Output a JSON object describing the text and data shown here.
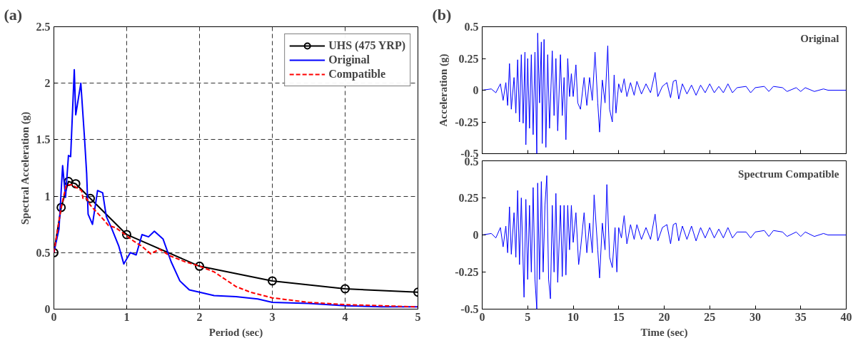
{
  "chart_data": [
    {
      "type": "line",
      "title": "(a)",
      "xlabel": "Period (sec)",
      "ylabel": "Spectral Acceleration (g)",
      "xlim": [
        0,
        5
      ],
      "ylim": [
        0,
        2.5
      ],
      "xticks": [
        0,
        1,
        2,
        3,
        4,
        5
      ],
      "yticks": [
        0,
        0.5,
        1,
        1.5,
        2,
        2.5
      ],
      "grid": true,
      "legend": "top right",
      "line_style": "solid",
      "marker": "none",
      "series": [
        {
          "name": "UHS (475 YRP)",
          "color": "#000000",
          "marker": "circle",
          "x": [
            0,
            0.1,
            0.2,
            0.3,
            0.5,
            1,
            2,
            3,
            4,
            5
          ],
          "values": [
            0.5,
            0.9,
            1.13,
            1.11,
            0.98,
            0.66,
            0.38,
            0.25,
            0.18,
            0.15
          ]
        },
        {
          "name": "Original",
          "color": "#0000ff",
          "x": [
            0,
            0.07,
            0.12,
            0.16,
            0.2,
            0.23,
            0.28,
            0.3,
            0.37,
            0.42,
            0.45,
            0.47,
            0.53,
            0.6,
            0.67,
            0.72,
            0.79,
            0.89,
            0.96,
            1.05,
            1.13,
            1.21,
            1.3,
            1.38,
            1.5,
            1.61,
            1.73,
            1.86,
            2,
            2.2,
            2.5,
            2.8,
            3,
            3.5,
            4,
            4.5,
            5
          ],
          "values": [
            0.5,
            0.71,
            1.27,
            0.99,
            1.36,
            1.35,
            2.12,
            1.72,
            2.0,
            1.52,
            1.2,
            0.84,
            0.75,
            1.05,
            1.03,
            0.82,
            0.72,
            0.56,
            0.4,
            0.5,
            0.48,
            0.66,
            0.64,
            0.69,
            0.62,
            0.42,
            0.25,
            0.17,
            0.15,
            0.12,
            0.11,
            0.09,
            0.06,
            0.05,
            0.03,
            0.02,
            0.02
          ]
        },
        {
          "name": "Compatible",
          "color": "#ff0000",
          "line_style": "dashed",
          "x": [
            0,
            0.1,
            0.17,
            0.25,
            0.3,
            0.38,
            0.4,
            0.45,
            0.5,
            0.6,
            0.7,
            0.75,
            0.85,
            1,
            1.1,
            1.2,
            1.33,
            1.45,
            1.6,
            1.8,
            1.9,
            2,
            2.2,
            2.5,
            2.7,
            3,
            3.5,
            4,
            5
          ],
          "values": [
            0.5,
            0.9,
            1.1,
            1.1,
            1.08,
            1.05,
            0.98,
            0.98,
            0.92,
            0.85,
            0.78,
            0.74,
            0.72,
            0.65,
            0.6,
            0.56,
            0.49,
            0.53,
            0.47,
            0.42,
            0.4,
            0.38,
            0.33,
            0.2,
            0.15,
            0.1,
            0.06,
            0.04,
            0.02
          ]
        }
      ]
    },
    {
      "type": "line",
      "title": "(b)",
      "ylabel": "Acceleration (g)",
      "xlim": [
        0,
        40
      ],
      "ylim": [
        -0.5,
        0.5
      ],
      "xticks": [
        0,
        5,
        10,
        15,
        20,
        25,
        30,
        35,
        40
      ],
      "yticks": [
        -0.5,
        -0.25,
        0,
        0.25,
        0.5
      ],
      "tick_labels": "y",
      "annotations": [
        "Original"
      ],
      "series": [
        {
          "color": "#0000ff",
          "x": [
            0,
            1,
            1.5,
            2,
            2.3,
            2.6,
            2.8,
            3.0,
            3.2,
            3.5,
            3.7,
            3.9,
            4.1,
            4.3,
            4.5,
            4.7,
            4.8,
            5.0,
            5.2,
            5.4,
            5.6,
            5.8,
            6.0,
            6.1,
            6.3,
            6.5,
            6.6,
            6.8,
            7.0,
            7.2,
            7.4,
            7.7,
            7.9,
            8.1,
            8.3,
            8.6,
            8.8,
            9.0,
            9.2,
            9.4,
            9.6,
            9.8,
            10.0,
            10.3,
            10.5,
            10.8,
            11.2,
            11.5,
            11.8,
            12.1,
            12.4,
            12.7,
            12.9,
            13.2,
            13.5,
            13.8,
            14.0,
            14.3,
            14.5,
            14.7,
            15,
            15.3,
            15.6,
            15.9,
            16.3,
            16.7,
            17,
            17.5,
            18,
            18.5,
            19,
            19.3,
            19.8,
            20.3,
            20.7,
            21,
            21.3,
            21.6,
            22,
            22.5,
            23,
            23.5,
            24,
            24.5,
            25,
            25.5,
            26,
            26.5,
            27,
            27.5,
            28,
            29,
            29.5,
            30,
            31,
            31.5,
            32,
            33,
            33.5,
            34.5,
            35,
            35.5,
            36.5,
            37.5,
            38,
            40
          ],
          "values": [
            0,
            0.01,
            -0.02,
            0.05,
            -0.08,
            0.06,
            -0.12,
            0.21,
            -0.15,
            0.1,
            -0.18,
            0.24,
            -0.25,
            0.28,
            -0.26,
            0.3,
            -0.43,
            0.25,
            -0.3,
            0.28,
            -0.35,
            0.3,
            -0.5,
            0.45,
            -0.1,
            0.38,
            -0.42,
            0.4,
            -0.45,
            0.28,
            -0.3,
            0.31,
            -0.2,
            0.25,
            -0.32,
            0.28,
            -0.2,
            0.1,
            -0.39,
            0.25,
            -0.05,
            0.13,
            -0.05,
            0.2,
            -0.1,
            -0.15,
            0.1,
            -0.12,
            0.1,
            -0.08,
            0.3,
            -0.1,
            -0.33,
            0.08,
            -0.1,
            0.35,
            -0.15,
            -0.25,
            0.12,
            -0.18,
            0.05,
            -0.02,
            0.09,
            -0.05,
            0.06,
            -0.04,
            0.07,
            -0.03,
            0.05,
            -0.02,
            0.14,
            -0.05,
            0.03,
            0.06,
            -0.06,
            0.07,
            0.08,
            -0.07,
            0.05,
            -0.03,
            0.04,
            -0.04,
            0.04,
            -0.02,
            0.05,
            -0.02,
            0.03,
            -0.02,
            0.05,
            -0.02,
            0.02,
            0.03,
            -0.02,
            0.02,
            0.03,
            -0.01,
            0.03,
            0.02,
            -0.01,
            0.02,
            -0.01,
            0.02,
            -0.01,
            0.01,
            0,
            0
          ]
        }
      ]
    },
    {
      "type": "line",
      "xlabel": "Time (sec)",
      "xlim": [
        0,
        40
      ],
      "ylim": [
        -0.5,
        0.5
      ],
      "xticks": [
        0,
        5,
        10,
        15,
        20,
        25,
        30,
        35,
        40
      ],
      "yticks": [
        -0.5,
        -0.25,
        0,
        0.25,
        0.5
      ],
      "annotations": [
        "Spectrum Compatible"
      ],
      "series": [
        {
          "color": "#0000ff",
          "x": [
            0,
            1,
            1.5,
            2,
            2.3,
            2.6,
            2.8,
            3.0,
            3.2,
            3.5,
            3.7,
            3.9,
            4.1,
            4.3,
            4.6,
            4.8,
            5.0,
            5.2,
            5.4,
            5.6,
            5.8,
            6.0,
            6.1,
            6.3,
            6.5,
            6.7,
            6.9,
            7.1,
            7.3,
            7.5,
            7.7,
            7.9,
            8.1,
            8.3,
            8.6,
            8.8,
            9.0,
            9.2,
            9.4,
            9.6,
            9.8,
            10.0,
            10.3,
            10.6,
            10.8,
            11.2,
            11.5,
            11.8,
            12.1,
            12.3,
            12.7,
            12.9,
            13.2,
            13.5,
            13.7,
            14.0,
            14.3,
            14.6,
            14.8,
            15,
            15.3,
            15.6,
            15.9,
            16.3,
            16.7,
            17,
            17.5,
            18,
            18.5,
            19,
            19.3,
            19.8,
            20.3,
            20.7,
            21,
            21.3,
            21.6,
            22,
            22.5,
            23,
            23.5,
            24,
            24.5,
            25,
            25.5,
            26,
            26.5,
            27,
            27.5,
            28,
            29,
            29.5,
            30,
            31,
            31.5,
            32,
            33,
            33.5,
            34.5,
            35,
            35.5,
            36.5,
            37.5,
            38,
            40
          ],
          "values": [
            0,
            0.01,
            -0.02,
            0.05,
            -0.08,
            0.06,
            -0.12,
            0.19,
            -0.13,
            0.15,
            -0.15,
            0.3,
            -0.2,
            0.25,
            -0.42,
            0.24,
            -0.3,
            0.2,
            -0.25,
            0.32,
            -0.3,
            -0.5,
            0.35,
            -0.3,
            0.36,
            -0.25,
            0.2,
            0.4,
            -0.3,
            -0.43,
            0.2,
            -0.25,
            0.28,
            -0.32,
            0.2,
            -0.28,
            0.2,
            -0.27,
            0.2,
            -0.1,
            0.2,
            -0.05,
            0.15,
            -0.2,
            -0.1,
            0.15,
            -0.12,
            0.08,
            -0.12,
            0.27,
            -0.1,
            -0.29,
            0.08,
            -0.1,
            0.34,
            -0.15,
            -0.22,
            0.05,
            -0.25,
            0.05,
            -0.02,
            0.13,
            -0.06,
            0.07,
            -0.03,
            0.07,
            -0.03,
            0.05,
            -0.03,
            0.14,
            -0.04,
            0.05,
            0.07,
            -0.06,
            0.07,
            0.08,
            -0.04,
            0.06,
            -0.03,
            0.06,
            -0.04,
            0.05,
            -0.02,
            0.05,
            -0.02,
            0.04,
            -0.02,
            0.05,
            -0.02,
            0.02,
            0.02,
            -0.02,
            0.02,
            0.03,
            -0.01,
            0.03,
            0.02,
            -0.01,
            0.02,
            -0.01,
            0.02,
            -0.01,
            0.01,
            0,
            0
          ]
        }
      ]
    }
  ]
}
